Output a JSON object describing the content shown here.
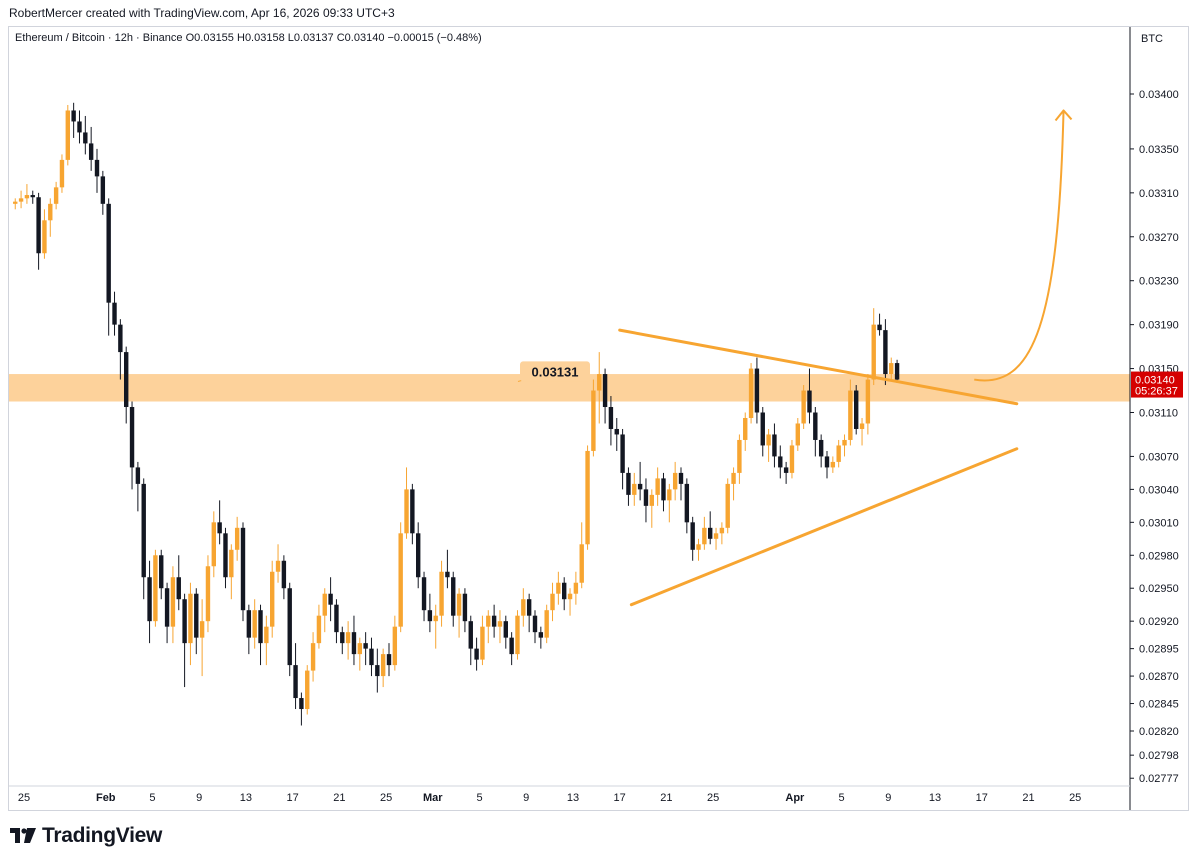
{
  "header": {
    "credit": "RobertMercer created with TradingView.com, Apr 16, 2026 09:33 UTC+3"
  },
  "legend": {
    "symbol": "Ethereum / Bitcoin · 12h · Binance",
    "open_label": "O",
    "open": "0.03155",
    "high_label": "H",
    "high": "0.03158",
    "low_label": "L",
    "low": "0.03137",
    "close_label": "C",
    "close": "0.03140",
    "change": "−0.00015 (−0.48%)"
  },
  "price_axis": {
    "currency": "BTC",
    "current_price": "0.03140",
    "countdown": "05:26:37"
  },
  "footer": {
    "brand": "TradingView"
  },
  "colors": {
    "up": "#f7a531",
    "down": "#131722",
    "zone": "#fdd29b",
    "drawing": "#f7a531",
    "current_price_badge": "#d50000"
  },
  "chart_data": {
    "type": "candlestick",
    "title": "Ethereum / Bitcoin · 12h · Binance",
    "interval": "12h",
    "yaxis_position": "right",
    "ylim": [
      0.02777,
      0.0345
    ],
    "ytick_labels": [
      "0.03400",
      "0.03350",
      "0.03310",
      "0.03270",
      "0.03230",
      "0.03190",
      "0.03150",
      "0.03110",
      "0.03070",
      "0.03040",
      "0.03010",
      "0.02980",
      "0.02950",
      "0.02920",
      "0.02895",
      "0.02870",
      "0.02845",
      "0.02820",
      "0.02798",
      "0.02777"
    ],
    "xtick_labels": [
      "25",
      "Feb",
      "5",
      "9",
      "13",
      "17",
      "21",
      "25",
      "Mar",
      "5",
      "9",
      "13",
      "17",
      "21",
      "25",
      "Apr",
      "5",
      "9",
      "13",
      "17",
      "21",
      "25"
    ],
    "xtick_dates": [
      "2026-01-25",
      "2026-02-01",
      "2026-02-05",
      "2026-02-09",
      "2026-02-13",
      "2026-02-17",
      "2026-02-21",
      "2026-02-25",
      "2026-03-01",
      "2026-03-05",
      "2026-03-09",
      "2026-03-13",
      "2026-03-17",
      "2026-03-21",
      "2026-03-25",
      "2026-04-01",
      "2026-04-05",
      "2026-04-09",
      "2026-04-13",
      "2026-04-17",
      "2026-04-21",
      "2026-04-25"
    ],
    "first_candle": "2026-01-24T00:00",
    "bar_hours": 12,
    "candles": [
      [
        0.033,
        0.03305,
        0.03295,
        0.03302
      ],
      [
        0.03302,
        0.03312,
        0.03296,
        0.03305
      ],
      [
        0.03305,
        0.03318,
        0.033,
        0.03308
      ],
      [
        0.03308,
        0.03312,
        0.033,
        0.03306
      ],
      [
        0.03306,
        0.0331,
        0.0324,
        0.03255
      ],
      [
        0.03255,
        0.03295,
        0.0325,
        0.03285
      ],
      [
        0.03285,
        0.03305,
        0.0327,
        0.033
      ],
      [
        0.033,
        0.0332,
        0.03295,
        0.03315
      ],
      [
        0.03315,
        0.03345,
        0.0331,
        0.0334
      ],
      [
        0.0334,
        0.0339,
        0.03335,
        0.03385
      ],
      [
        0.03385,
        0.03392,
        0.0336,
        0.03375
      ],
      [
        0.03375,
        0.03385,
        0.03355,
        0.03365
      ],
      [
        0.03365,
        0.0338,
        0.03345,
        0.03355
      ],
      [
        0.03355,
        0.0337,
        0.0333,
        0.0334
      ],
      [
        0.0334,
        0.0335,
        0.0331,
        0.03325
      ],
      [
        0.03325,
        0.0333,
        0.0329,
        0.033
      ],
      [
        0.033,
        0.03305,
        0.0318,
        0.0321
      ],
      [
        0.0321,
        0.0322,
        0.0318,
        0.0319
      ],
      [
        0.0319,
        0.03195,
        0.0314,
        0.03165
      ],
      [
        0.03165,
        0.0317,
        0.031,
        0.03115
      ],
      [
        0.03115,
        0.0312,
        0.0304,
        0.0306
      ],
      [
        0.0306,
        0.03065,
        0.0302,
        0.03045
      ],
      [
        0.03045,
        0.0305,
        0.0294,
        0.0296
      ],
      [
        0.0296,
        0.02975,
        0.029,
        0.0292
      ],
      [
        0.0292,
        0.02985,
        0.02915,
        0.0298
      ],
      [
        0.0298,
        0.02985,
        0.0294,
        0.0295
      ],
      [
        0.0295,
        0.02955,
        0.029,
        0.02915
      ],
      [
        0.02915,
        0.0297,
        0.029,
        0.0296
      ],
      [
        0.0296,
        0.0298,
        0.0293,
        0.0294
      ],
      [
        0.0294,
        0.02945,
        0.0286,
        0.029
      ],
      [
        0.029,
        0.02955,
        0.0288,
        0.02945
      ],
      [
        0.02945,
        0.0295,
        0.0289,
        0.02905
      ],
      [
        0.02905,
        0.0294,
        0.0287,
        0.0292
      ],
      [
        0.0292,
        0.0298,
        0.0291,
        0.0297
      ],
      [
        0.0297,
        0.0302,
        0.0296,
        0.0301
      ],
      [
        0.0301,
        0.0303,
        0.0299,
        0.03
      ],
      [
        0.03,
        0.03005,
        0.0295,
        0.0296
      ],
      [
        0.0296,
        0.0299,
        0.0294,
        0.02985
      ],
      [
        0.02985,
        0.03015,
        0.02975,
        0.03005
      ],
      [
        0.03005,
        0.0301,
        0.0292,
        0.0293
      ],
      [
        0.0293,
        0.02935,
        0.0289,
        0.02905
      ],
      [
        0.02905,
        0.0294,
        0.02895,
        0.0293
      ],
      [
        0.0293,
        0.02935,
        0.0288,
        0.029
      ],
      [
        0.029,
        0.02925,
        0.0288,
        0.02915
      ],
      [
        0.02915,
        0.02975,
        0.02905,
        0.02965
      ],
      [
        0.02965,
        0.0299,
        0.02955,
        0.02975
      ],
      [
        0.02975,
        0.0298,
        0.0294,
        0.0295
      ],
      [
        0.0295,
        0.02955,
        0.0287,
        0.0288
      ],
      [
        0.0288,
        0.029,
        0.0284,
        0.0285
      ],
      [
        0.0285,
        0.02855,
        0.02825,
        0.0284
      ],
      [
        0.0284,
        0.0288,
        0.02835,
        0.02875
      ],
      [
        0.02875,
        0.0291,
        0.02865,
        0.029
      ],
      [
        0.029,
        0.02935,
        0.02895,
        0.02925
      ],
      [
        0.02925,
        0.0295,
        0.0291,
        0.02945
      ],
      [
        0.02945,
        0.0296,
        0.0292,
        0.02935
      ],
      [
        0.02935,
        0.0294,
        0.029,
        0.0291
      ],
      [
        0.0291,
        0.02915,
        0.0289,
        0.029
      ],
      [
        0.029,
        0.0292,
        0.02885,
        0.0291
      ],
      [
        0.0291,
        0.02925,
        0.0288,
        0.0289
      ],
      [
        0.0289,
        0.02905,
        0.02875,
        0.029
      ],
      [
        0.029,
        0.0291,
        0.0288,
        0.02895
      ],
      [
        0.02895,
        0.02905,
        0.0287,
        0.0288
      ],
      [
        0.0288,
        0.02895,
        0.02855,
        0.0287
      ],
      [
        0.0287,
        0.02895,
        0.0286,
        0.0289
      ],
      [
        0.0289,
        0.029,
        0.0287,
        0.0288
      ],
      [
        0.0288,
        0.02925,
        0.02875,
        0.02915
      ],
      [
        0.02915,
        0.0301,
        0.0291,
        0.03
      ],
      [
        0.03,
        0.0306,
        0.02995,
        0.0304
      ],
      [
        0.0304,
        0.03045,
        0.0299,
        0.03
      ],
      [
        0.03,
        0.0301,
        0.0295,
        0.0296
      ],
      [
        0.0296,
        0.02965,
        0.0292,
        0.0293
      ],
      [
        0.0293,
        0.02945,
        0.0291,
        0.0292
      ],
      [
        0.0292,
        0.02935,
        0.02895,
        0.02925
      ],
      [
        0.02925,
        0.02975,
        0.02915,
        0.02965
      ],
      [
        0.02965,
        0.02985,
        0.0295,
        0.0296
      ],
      [
        0.0296,
        0.02965,
        0.02915,
        0.02925
      ],
      [
        0.02925,
        0.0295,
        0.02905,
        0.02945
      ],
      [
        0.02945,
        0.0295,
        0.0291,
        0.0292
      ],
      [
        0.0292,
        0.02925,
        0.0288,
        0.02895
      ],
      [
        0.02895,
        0.02905,
        0.02875,
        0.02885
      ],
      [
        0.02885,
        0.02925,
        0.0288,
        0.02915
      ],
      [
        0.02915,
        0.0293,
        0.029,
        0.02925
      ],
      [
        0.02925,
        0.02935,
        0.02905,
        0.02915
      ],
      [
        0.02915,
        0.0293,
        0.029,
        0.0292
      ],
      [
        0.0292,
        0.02925,
        0.02895,
        0.02905
      ],
      [
        0.02905,
        0.0291,
        0.0288,
        0.0289
      ],
      [
        0.0289,
        0.0293,
        0.02885,
        0.02925
      ],
      [
        0.02925,
        0.0295,
        0.02915,
        0.0294
      ],
      [
        0.0294,
        0.02945,
        0.0291,
        0.02925
      ],
      [
        0.02925,
        0.0293,
        0.029,
        0.0291
      ],
      [
        0.0291,
        0.02915,
        0.02895,
        0.02905
      ],
      [
        0.02905,
        0.02935,
        0.029,
        0.0293
      ],
      [
        0.0293,
        0.02955,
        0.0292,
        0.02945
      ],
      [
        0.02945,
        0.02965,
        0.02935,
        0.02955
      ],
      [
        0.02955,
        0.0296,
        0.0293,
        0.0294
      ],
      [
        0.0294,
        0.0295,
        0.02925,
        0.02945
      ],
      [
        0.02945,
        0.02965,
        0.02935,
        0.02955
      ],
      [
        0.02955,
        0.0301,
        0.0295,
        0.0299
      ],
      [
        0.0299,
        0.0308,
        0.02985,
        0.03075
      ],
      [
        0.03075,
        0.0314,
        0.0307,
        0.0313
      ],
      [
        0.0313,
        0.03165,
        0.031,
        0.03145
      ],
      [
        0.03145,
        0.0315,
        0.031,
        0.03115
      ],
      [
        0.03115,
        0.03125,
        0.0308,
        0.03095
      ],
      [
        0.03095,
        0.03105,
        0.03075,
        0.0309
      ],
      [
        0.0309,
        0.03095,
        0.0304,
        0.03055
      ],
      [
        0.03055,
        0.0306,
        0.03025,
        0.03035
      ],
      [
        0.03035,
        0.03055,
        0.03025,
        0.03045
      ],
      [
        0.03045,
        0.03065,
        0.0303,
        0.0304
      ],
      [
        0.0304,
        0.0305,
        0.0301,
        0.03025
      ],
      [
        0.03025,
        0.0304,
        0.03005,
        0.03035
      ],
      [
        0.03035,
        0.0306,
        0.03025,
        0.0305
      ],
      [
        0.0305,
        0.03055,
        0.0302,
        0.0303
      ],
      [
        0.0303,
        0.03045,
        0.0301,
        0.0304
      ],
      [
        0.0304,
        0.03065,
        0.0303,
        0.03055
      ],
      [
        0.03055,
        0.0306,
        0.0303,
        0.03045
      ],
      [
        0.03045,
        0.0305,
        0.03,
        0.0301
      ],
      [
        0.0301,
        0.03015,
        0.02975,
        0.02985
      ],
      [
        0.02985,
        0.02995,
        0.02975,
        0.0299
      ],
      [
        0.0299,
        0.03015,
        0.02985,
        0.03005
      ],
      [
        0.03005,
        0.0302,
        0.0299,
        0.02995
      ],
      [
        0.02995,
        0.03005,
        0.02985,
        0.03
      ],
      [
        0.03,
        0.0301,
        0.0299,
        0.03005
      ],
      [
        0.03005,
        0.0305,
        0.03,
        0.03045
      ],
      [
        0.03045,
        0.0306,
        0.0303,
        0.03055
      ],
      [
        0.03055,
        0.0309,
        0.03045,
        0.03085
      ],
      [
        0.03085,
        0.0311,
        0.03075,
        0.03105
      ],
      [
        0.03105,
        0.03155,
        0.031,
        0.0315
      ],
      [
        0.0315,
        0.0316,
        0.031,
        0.0311
      ],
      [
        0.0311,
        0.03115,
        0.0307,
        0.0308
      ],
      [
        0.0308,
        0.03095,
        0.03065,
        0.0309
      ],
      [
        0.0309,
        0.031,
        0.0306,
        0.0307
      ],
      [
        0.0307,
        0.0308,
        0.0305,
        0.0306
      ],
      [
        0.0306,
        0.03065,
        0.03045,
        0.03055
      ],
      [
        0.03055,
        0.03085,
        0.0305,
        0.0308
      ],
      [
        0.0308,
        0.03105,
        0.03075,
        0.031
      ],
      [
        0.031,
        0.03135,
        0.03095,
        0.0313
      ],
      [
        0.0313,
        0.0315,
        0.031,
        0.0311
      ],
      [
        0.0311,
        0.03115,
        0.0307,
        0.03085
      ],
      [
        0.03085,
        0.0309,
        0.0306,
        0.0307
      ],
      [
        0.0307,
        0.03075,
        0.0305,
        0.0306
      ],
      [
        0.0306,
        0.0307,
        0.03055,
        0.03065
      ],
      [
        0.03065,
        0.03085,
        0.0306,
        0.0308
      ],
      [
        0.0308,
        0.0309,
        0.0307,
        0.03085
      ],
      [
        0.03085,
        0.0314,
        0.0308,
        0.0313
      ],
      [
        0.0313,
        0.03135,
        0.0309,
        0.03095
      ],
      [
        0.03095,
        0.03105,
        0.0308,
        0.031
      ],
      [
        0.031,
        0.03145,
        0.0309,
        0.0314
      ],
      [
        0.0314,
        0.03205,
        0.03135,
        0.0319
      ],
      [
        0.0319,
        0.032,
        0.0318,
        0.03185
      ],
      [
        0.03185,
        0.03195,
        0.03135,
        0.03145
      ],
      [
        0.03145,
        0.0316,
        0.0314,
        0.03155
      ],
      [
        0.03155,
        0.03158,
        0.03137,
        0.0314
      ]
    ],
    "drawings": {
      "resistance_zone": {
        "from": 0.0312,
        "to": 0.03145,
        "label": "0.03131"
      },
      "descending_trendline": {
        "from": [
          "2026-03-17T00:00",
          0.03185
        ],
        "to": [
          "2026-04-20T00:00",
          0.03118
        ]
      },
      "ascending_trendline": {
        "from": [
          "2026-03-18T00:00",
          0.02935
        ],
        "to": [
          "2026-04-20T00:00",
          0.03077
        ]
      },
      "projection_arrow": {
        "from": [
          "2026-04-15T12:00",
          0.0314
        ],
        "to": [
          "2026-04-24T00:00",
          0.03385
        ]
      }
    }
  }
}
